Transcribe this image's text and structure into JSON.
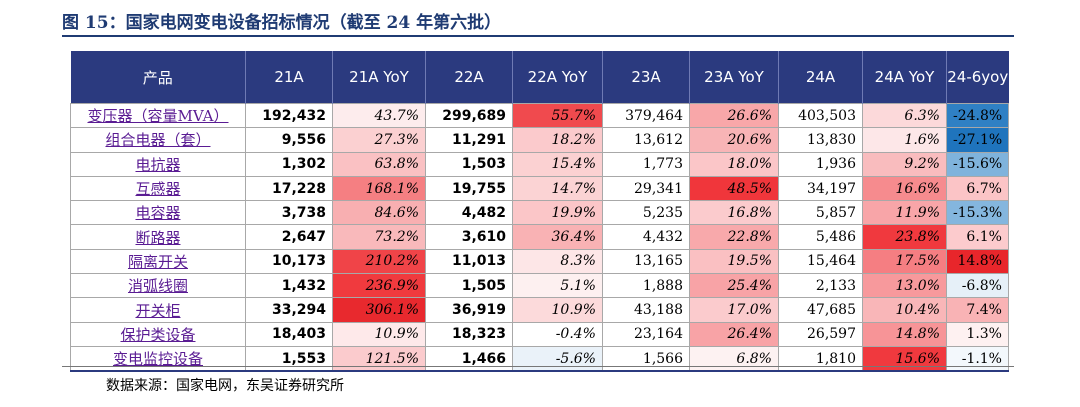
{
  "title": "图 15：国家电网变电设备招标情况（截至 24 年第六批）",
  "source": "数据来源：国家电网，东吴证券研究所",
  "headers": [
    "产品",
    "21A",
    "21A YoY",
    "22A",
    "22A YoY",
    "23A",
    "23A YoY",
    "24A",
    "24A YoY",
    "24-6yoy"
  ],
  "rows": [
    [
      "变压器（容量MVA）",
      "192,432",
      "43.7%",
      "299,689",
      "55.7%",
      "379,464",
      "26.6%",
      "403,503",
      "6.3%",
      "-24.8%"
    ],
    [
      "组合电器（套）",
      "9,556",
      "27.3%",
      "11,291",
      "18.2%",
      "13,612",
      "20.6%",
      "13,830",
      "1.6%",
      "-27.1%"
    ],
    [
      "电抗器",
      "1,302",
      "63.8%",
      "1,503",
      "15.4%",
      "1,773",
      "18.0%",
      "1,936",
      "9.2%",
      "-15.6%"
    ],
    [
      "互感器",
      "17,228",
      "168.1%",
      "19,755",
      "14.7%",
      "29,341",
      "48.5%",
      "34,197",
      "16.6%",
      "6.7%"
    ],
    [
      "电容器",
      "3,738",
      "84.6%",
      "4,482",
      "19.9%",
      "5,235",
      "16.8%",
      "5,857",
      "11.9%",
      "-15.3%"
    ],
    [
      "断路器",
      "2,647",
      "73.2%",
      "3,610",
      "36.4%",
      "4,432",
      "22.8%",
      "5,486",
      "23.8%",
      "6.1%"
    ],
    [
      "隔离开关",
      "10,173",
      "210.2%",
      "11,013",
      "8.3%",
      "13,165",
      "19.5%",
      "15,464",
      "17.5%",
      "14.8%"
    ],
    [
      "消弧线圈",
      "1,432",
      "236.9%",
      "1,505",
      "5.1%",
      "1,888",
      "25.4%",
      "2,133",
      "13.0%",
      "-6.8%"
    ],
    [
      "开关柜",
      "33,294",
      "306.1%",
      "36,919",
      "10.9%",
      "43,188",
      "17.0%",
      "47,685",
      "10.4%",
      "7.4%"
    ],
    [
      "保护类设备",
      "18,403",
      "10.9%",
      "18,323",
      "-0.4%",
      "23,164",
      "26.4%",
      "26,597",
      "14.8%",
      "1.3%"
    ],
    [
      "变电监控设备",
      "1,553",
      "121.5%",
      "1,466",
      "-5.6%",
      "1,566",
      "6.8%",
      "1,810",
      "15.6%",
      "-1.1%"
    ]
  ],
  "cell_colors": [
    [
      "",
      "",
      "#fdeced",
      "",
      "#f04a4e",
      "",
      "#f8a7a9",
      "",
      "#fcd9da",
      "#2f80c4"
    ],
    [
      "",
      "",
      "#fbd0d1",
      "",
      "#fbcacc",
      "",
      "#f8b4b6",
      "",
      "#fde7e8",
      "#1f74bd"
    ],
    [
      "",
      "",
      "#fac1c3",
      "",
      "#fbd1d2",
      "",
      "#fbc6c8",
      "",
      "#f9bcbe",
      "#7fb3dc"
    ],
    [
      "",
      "",
      "#f57f82",
      "",
      "#fbd3d4",
      "",
      "#f0363b",
      "",
      "#f68b8e",
      "#fbc4c6"
    ],
    [
      "",
      "",
      "#f8afb1",
      "",
      "#fbc6c8",
      "",
      "#fbcbcd",
      "",
      "#f8a5a8",
      "#84b6de"
    ],
    [
      "",
      "",
      "#f9b9bb",
      "",
      "#f9b2b4",
      "",
      "#f8a9ab",
      "",
      "#f0393e",
      "#fccbcd"
    ],
    [
      "",
      "",
      "#f04448",
      "",
      "#fde6e7",
      "",
      "#fac0c2",
      "",
      "#f57e82",
      "#e8262b"
    ],
    [
      "",
      "",
      "#f03a3e",
      "",
      "#fdf0f0",
      "",
      "#f8a3a6",
      "",
      "#f7999c",
      "#e6f0f8"
    ],
    [
      "",
      "",
      "#e8292e",
      "",
      "#fcdadb",
      "",
      "#fbcbcd",
      "",
      "#f9b6b8",
      "#f9b3b5"
    ],
    [
      "",
      "",
      "#fee9ea",
      "",
      "#ffffff",
      "",
      "#f8a3a6",
      "",
      "#f79497",
      "#fef1f1"
    ],
    [
      "",
      "",
      "#fbcbcd",
      "",
      "#eaf2f9",
      "",
      "#fdf2f2",
      "",
      "#f0393e",
      "#f3f8fc"
    ]
  ]
}
